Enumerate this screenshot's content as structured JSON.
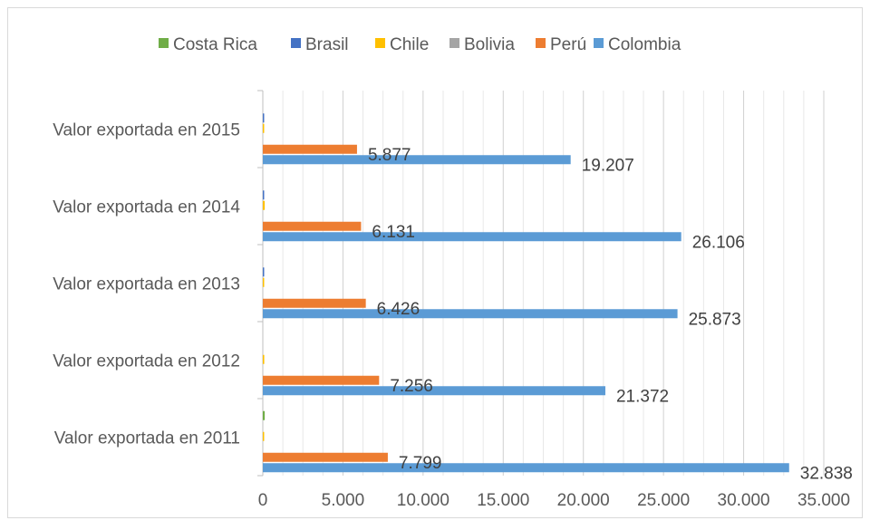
{
  "chart_data": {
    "type": "bar",
    "orientation": "horizontal",
    "categories": [
      "Valor exportada en 2011",
      "Valor exportada en 2012",
      "Valor exportada en 2013",
      "Valor exportada en 2014",
      "Valor exportada en 2015"
    ],
    "series": [
      {
        "name": "Costa Rica",
        "color": "#70ad47",
        "values": [
          120,
          0,
          0,
          0,
          0
        ],
        "labels": [
          "",
          "",
          "",
          "",
          ""
        ]
      },
      {
        "name": "Brasil",
        "color": "#4472c4",
        "values": [
          0,
          0,
          60,
          60,
          60
        ],
        "labels": [
          "",
          "",
          "",
          "",
          ""
        ]
      },
      {
        "name": "Chile",
        "color": "#ffc000",
        "values": [
          30,
          90,
          30,
          120,
          70
        ],
        "labels": [
          "",
          "",
          "",
          "",
          ""
        ]
      },
      {
        "name": "Bolivia",
        "color": "#a5a5a5",
        "values": [
          0,
          0,
          0,
          0,
          0
        ],
        "labels": [
          "",
          "",
          "",
          "",
          ""
        ]
      },
      {
        "name": "Perú",
        "color": "#ed7d31",
        "values": [
          7799,
          7256,
          6426,
          6131,
          5877
        ],
        "labels": [
          "7.799",
          "7.256",
          "6.426",
          "6.131",
          "5.877"
        ]
      },
      {
        "name": "Colombia",
        "color": "#5b9bd5",
        "values": [
          32838,
          21372,
          25873,
          26106,
          19207
        ],
        "labels": [
          "32.838",
          "21.372",
          "25.873",
          "26.106",
          "19.207"
        ]
      }
    ],
    "xlim": [
      0,
      35000
    ],
    "xticks": [
      0,
      5000,
      10000,
      15000,
      20000,
      25000,
      30000,
      35000
    ],
    "xtick_labels": [
      "0",
      "5.000",
      "10.000",
      "15.000",
      "20.000",
      "25.000",
      "30.000",
      "35.000"
    ],
    "grid": true,
    "legend_position": "top",
    "title": "",
    "xlabel": "",
    "ylabel": ""
  }
}
